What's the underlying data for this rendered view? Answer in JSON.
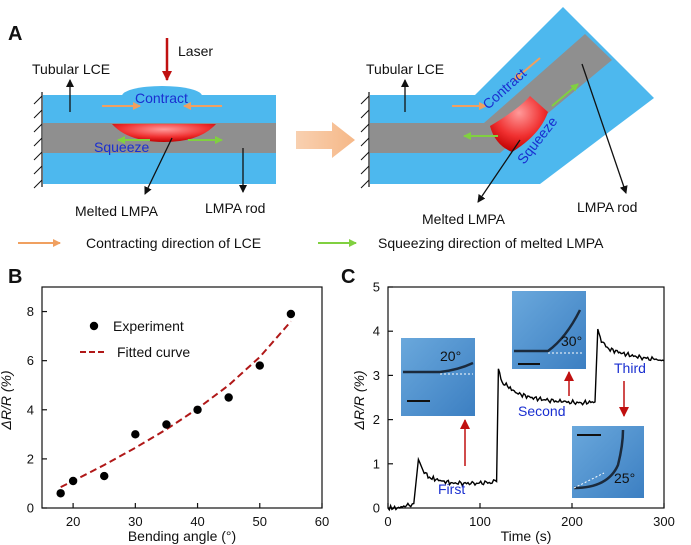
{
  "panelA": {
    "letter": "A",
    "left": {
      "tubular_lce": "Tubular LCE",
      "laser": "Laser",
      "contract": "Contract",
      "squeeze": "Squeeze",
      "melted_lmpa": "Melted LMPA",
      "lmpa_rod": "LMPA rod"
    },
    "right": {
      "tubular_lce": "Tubular LCE",
      "contract": "Contract",
      "squeeze": "Squeeze",
      "melted_lmpa": "Melted LMPA",
      "lmpa_rod": "LMPA rod"
    },
    "legend": {
      "orange": "Contracting direction of LCE",
      "green": "Squeezing direction of melted LMPA"
    },
    "colors": {
      "tube": "#4db8ee",
      "rod": "#8f8f8f",
      "orange_arrow": "#f0a060",
      "green_arrow": "#80d040",
      "laser": "#c01010"
    }
  },
  "panelB": {
    "letter": "B",
    "chart_data": {
      "type": "scatter",
      "xlabel": "Bending angle (°)",
      "ylabel": "ΔR/R (%)",
      "xlim": [
        15,
        60
      ],
      "ylim": [
        0,
        9
      ],
      "xticks": [
        20,
        30,
        40,
        50,
        60
      ],
      "yticks": [
        0,
        2,
        4,
        6,
        8
      ],
      "legend_position": "top-left",
      "series": [
        {
          "name": "Experiment",
          "kind": "points",
          "color": "#000000",
          "x": [
            18,
            20,
            25,
            30,
            35,
            40,
            45,
            50,
            55
          ],
          "y": [
            0.6,
            1.1,
            1.3,
            3.0,
            3.4,
            4.0,
            4.5,
            5.8,
            7.9
          ]
        },
        {
          "name": "Fitted curve",
          "kind": "dashed-line",
          "color": "#b01818",
          "x": [
            18,
            20,
            25,
            30,
            35,
            40,
            45,
            50,
            55
          ],
          "y": [
            0.85,
            1.1,
            1.75,
            2.45,
            3.2,
            4.05,
            5.0,
            6.15,
            7.6
          ]
        }
      ]
    }
  },
  "panelC": {
    "letter": "C",
    "chart_data": {
      "type": "line",
      "xlabel": "Time (s)",
      "ylabel": "ΔR/R (%)",
      "xlim": [
        0,
        300
      ],
      "ylim": [
        0,
        5
      ],
      "xticks": [
        0,
        100,
        200,
        300
      ],
      "yticks": [
        0,
        1,
        2,
        3,
        4,
        5
      ],
      "series": [
        {
          "name": "",
          "color": "#000000",
          "x": [
            0,
            10,
            20,
            28,
            33,
            38,
            45,
            55,
            70,
            90,
            110,
            118,
            120,
            124,
            130,
            140,
            155,
            170,
            190,
            210,
            225,
            228,
            232,
            240,
            255,
            270,
            290,
            300
          ],
          "y": [
            0.0,
            0.0,
            0.05,
            0.1,
            1.1,
            0.85,
            0.7,
            0.62,
            0.57,
            0.55,
            0.58,
            0.6,
            3.15,
            2.85,
            2.75,
            2.6,
            2.5,
            2.45,
            2.4,
            2.38,
            2.4,
            4.05,
            3.75,
            3.6,
            3.5,
            3.42,
            3.36,
            3.33
          ]
        }
      ],
      "annotations": [
        {
          "text": "First",
          "x": 82,
          "y": 0.0
        },
        {
          "text": "Second",
          "x": 158,
          "y": 1.3
        },
        {
          "text": "Third",
          "x": 265,
          "y": 4.1
        }
      ],
      "insets": [
        {
          "angle": "20°"
        },
        {
          "angle": "30°"
        },
        {
          "angle": "25°"
        }
      ]
    }
  }
}
